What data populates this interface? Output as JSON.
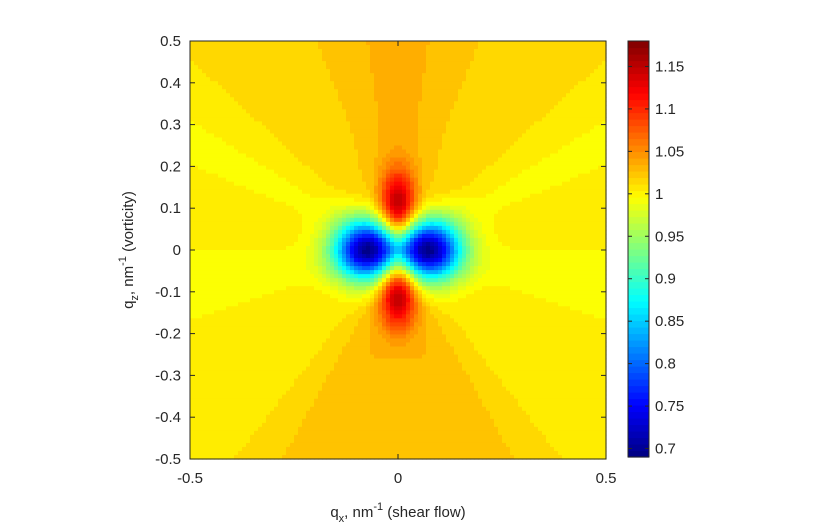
{
  "chart_data": {
    "type": "heatmap",
    "title": "",
    "x_axis": {
      "label_main": "q",
      "label_sub": "x",
      "label_unit": ", nm",
      "label_exp": "-1",
      "label_rest": " (shear flow)",
      "range": [
        -0.5,
        0.5
      ],
      "ticks": [
        -0.5,
        0,
        0.5
      ],
      "tick_labels": [
        "-0.5",
        "0",
        "0.5"
      ]
    },
    "y_axis": {
      "label_main": "q",
      "label_sub": "z",
      "label_unit": ", nm",
      "label_exp": "-1",
      "label_rest": " (vorticity)",
      "range": [
        -0.5,
        0.5
      ],
      "ticks": [
        -0.5,
        -0.4,
        -0.3,
        -0.2,
        -0.1,
        0,
        0.1,
        0.2,
        0.3,
        0.4,
        0.5
      ],
      "tick_labels": [
        "-0.5",
        "-0.4",
        "-0.3",
        "-0.2",
        "-0.1",
        "0",
        "0.1",
        "0.2",
        "0.3",
        "0.4",
        "0.5"
      ]
    },
    "colorbar": {
      "colormap": "jet",
      "range": [
        0.69,
        1.18
      ],
      "ticks": [
        0.7,
        0.75,
        0.8,
        0.85,
        0.9,
        0.95,
        1,
        1.05,
        1.1,
        1.15
      ],
      "tick_labels": [
        "0.7",
        "0.75",
        "0.8",
        "0.85",
        "0.9",
        "0.95",
        "1",
        "1.05",
        "1.1",
        "1.15"
      ]
    },
    "features": [
      {
        "kind": "minimum",
        "x": -0.075,
        "z": 0,
        "value": 0.7
      },
      {
        "kind": "minimum",
        "x": 0.075,
        "z": 0,
        "value": 0.7
      },
      {
        "kind": "maximum",
        "x": 0,
        "z": 0.1,
        "value": 1.17
      },
      {
        "kind": "maximum",
        "x": 0,
        "z": -0.1,
        "value": 1.17
      }
    ],
    "background_value_along_z_axis": 1.03,
    "background_value_along_x_axis": 1.0,
    "grid": false,
    "legend": "none"
  }
}
